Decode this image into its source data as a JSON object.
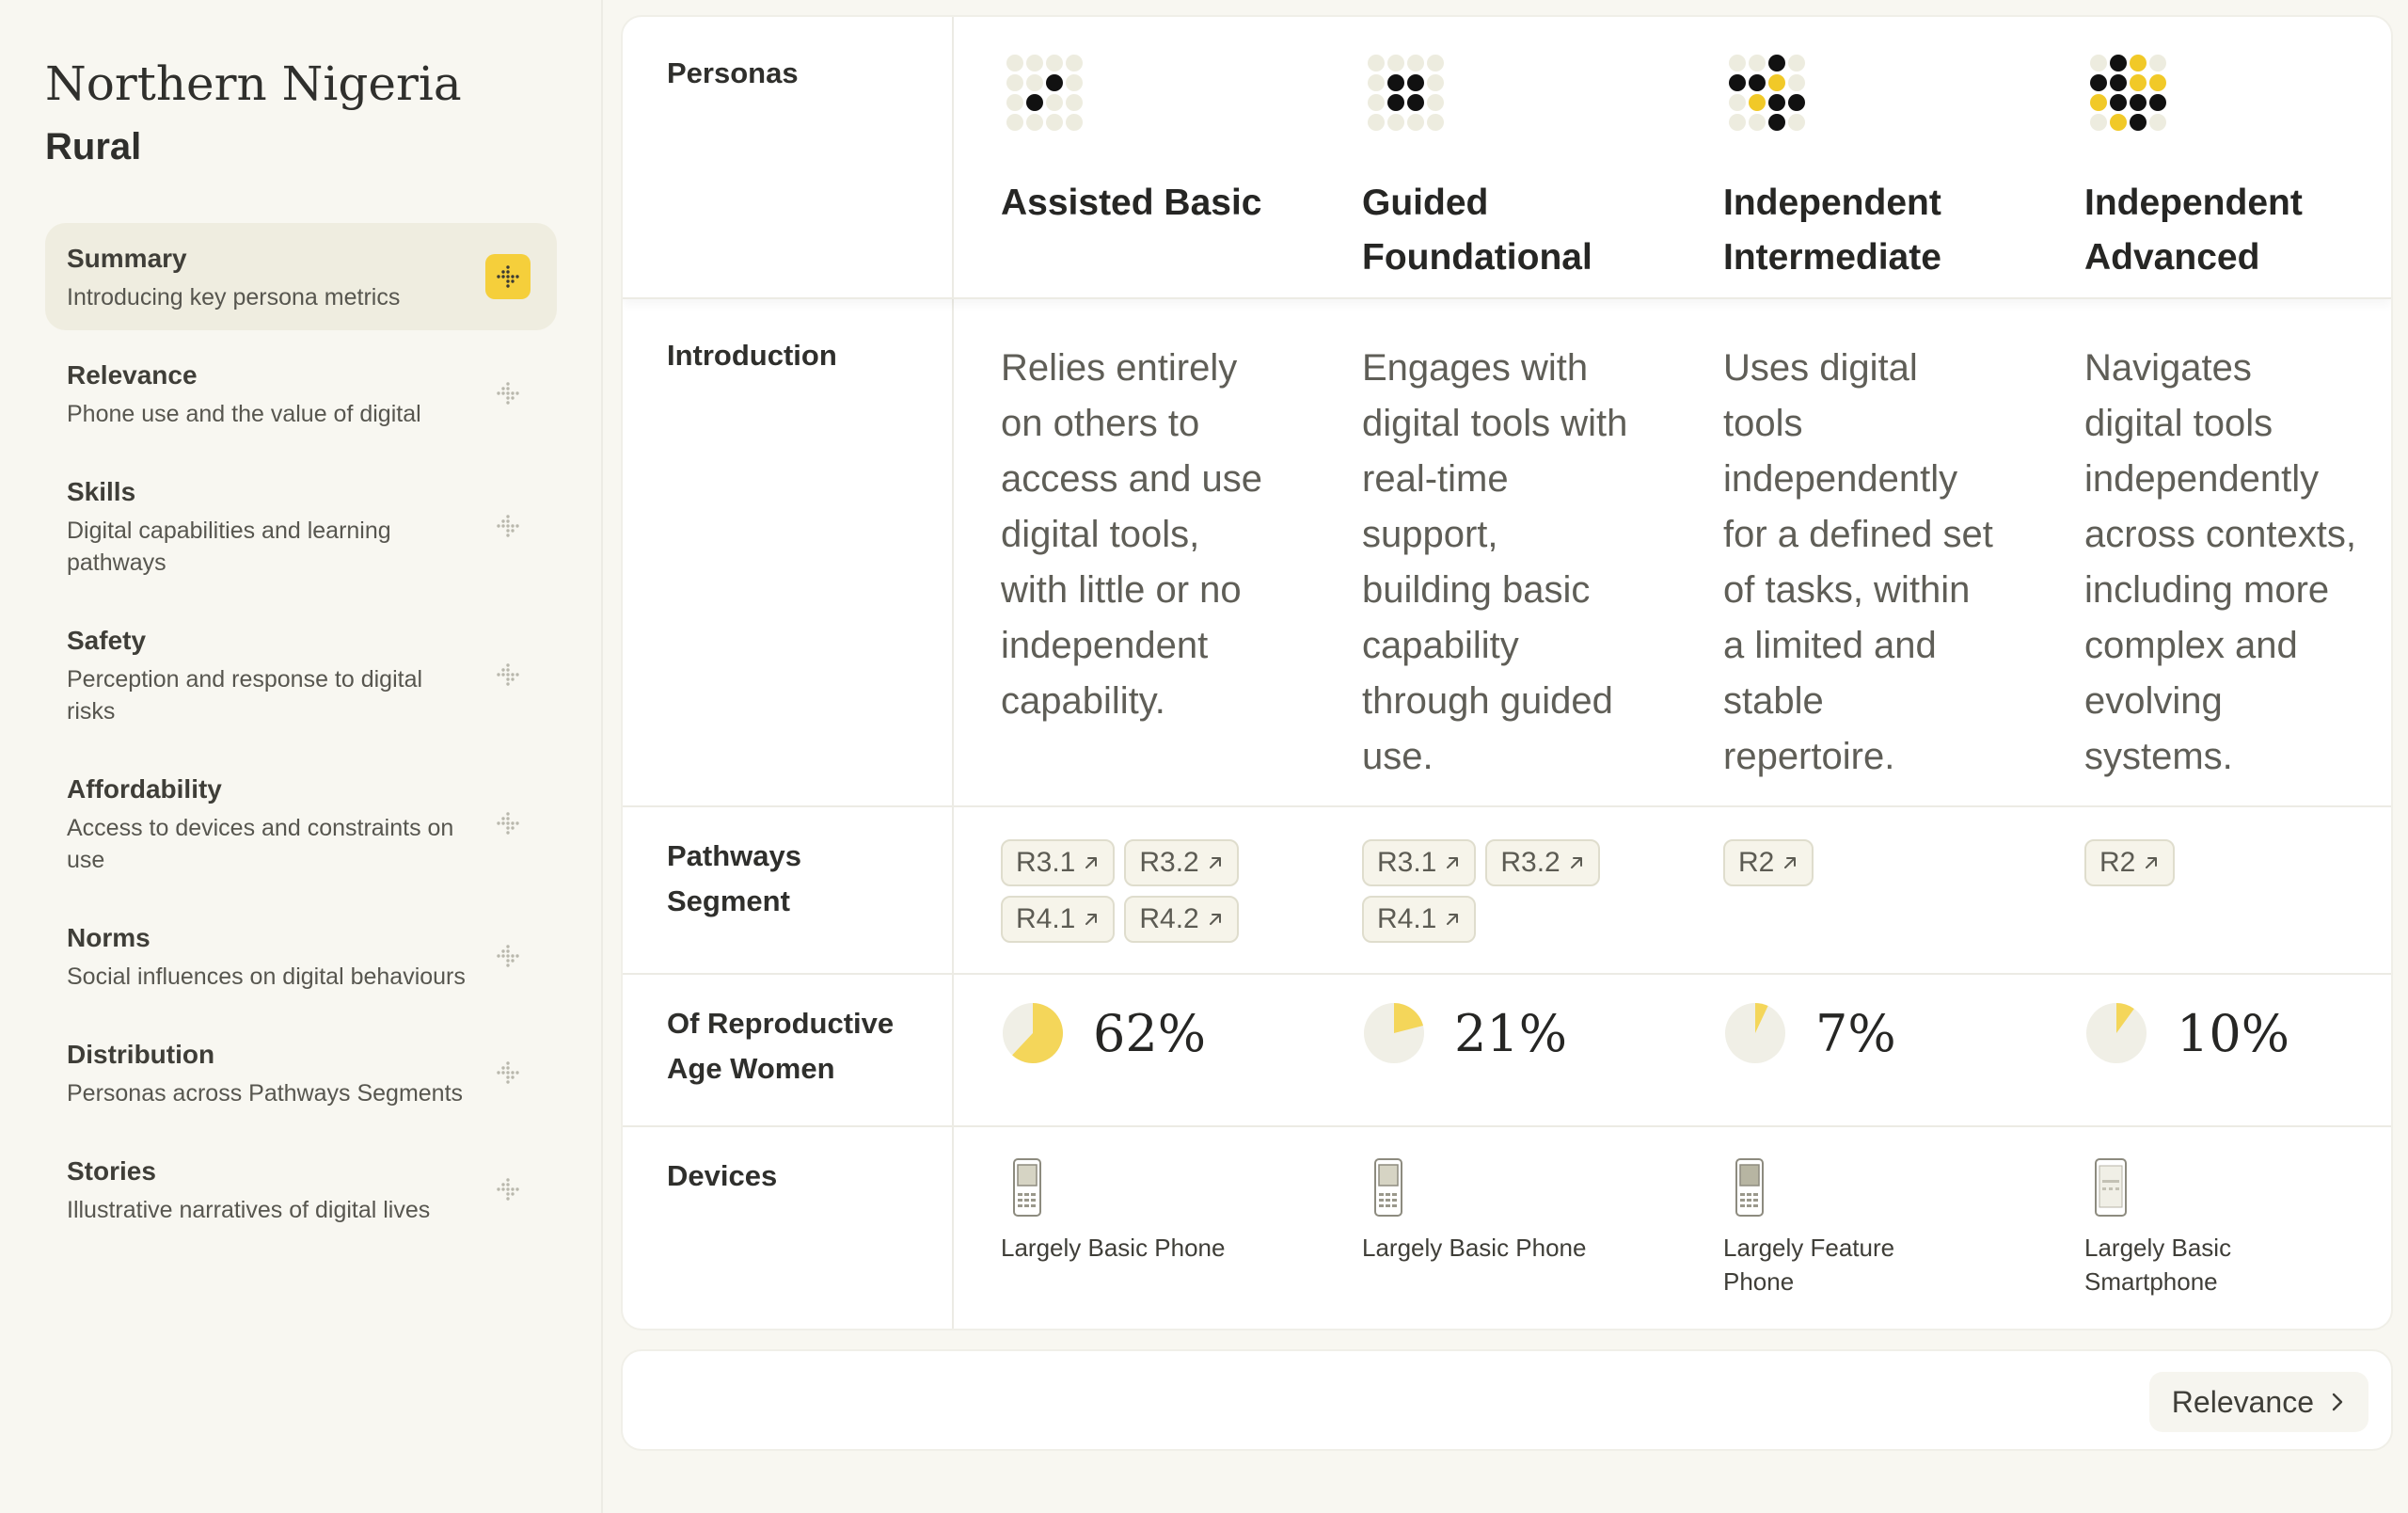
{
  "sidebar": {
    "region": "Northern Nigeria",
    "area": "Rural",
    "items": [
      {
        "title": "Summary",
        "desc": "Introducing key persona metrics"
      },
      {
        "title": "Relevance",
        "desc": "Phone use and the value of digital"
      },
      {
        "title": "Skills",
        "desc": "Digital capabilities and learning pathways"
      },
      {
        "title": "Safety",
        "desc": "Perception and response to digital risks"
      },
      {
        "title": "Affordability",
        "desc": "Access to devices and constraints on use"
      },
      {
        "title": "Norms",
        "desc": "Social influences on digital behaviours"
      },
      {
        "title": "Distribution",
        "desc": "Personas across Pathways Segments"
      },
      {
        "title": "Stories",
        "desc": "Illustrative narratives of digital lives"
      }
    ],
    "active_index": 0
  },
  "table": {
    "row_labels": {
      "personas": "Personas",
      "introduction": "Introduction",
      "pathways": "Pathways Segment",
      "women": "Of Reproductive Age Women",
      "devices": "Devices"
    },
    "personas": [
      {
        "name": "Assisted Basic",
        "intro": "Relies entirely on others to access and use digital tools, with little or no independent capability.",
        "segments": [
          "R3.1",
          "R3.2",
          "R4.1",
          "R4.2"
        ],
        "percent_label": "62%",
        "percent_value": 62,
        "device": "Largely Basic Phone",
        "device_icon": "basic-phone-icon",
        "dots": "....|..k.|.k..|...."
      },
      {
        "name": "Guided Foundational",
        "intro": "Engages with digital tools with real-time support, building basic capability through guided use.",
        "segments": [
          "R3.1",
          "R3.2",
          "R4.1"
        ],
        "percent_label": "21%",
        "percent_value": 21,
        "device": "Largely Basic Phone",
        "device_icon": "basic-phone-icon",
        "dots": "....|.kk.|.kk.|...."
      },
      {
        "name": "Independent Intermediate",
        "intro": "Uses digital tools independently for a defined set of tasks, within a limited and stable repertoire.",
        "segments": [
          "R2"
        ],
        "percent_label": "7%",
        "percent_value": 7,
        "device": "Largely Feature Phone",
        "device_icon": "feature-phone-icon",
        "dots": "..k.|kky.|.ykk|..k."
      },
      {
        "name": "Independent Advanced",
        "intro": "Navigates digital tools independently across contexts, including more complex and evolving systems.",
        "segments": [
          "R2"
        ],
        "percent_label": "10%",
        "percent_value": 10,
        "device": "Largely Basic Smartphone",
        "device_icon": "smartphone-icon",
        "dots": ".ky.|kkyy|ykkk|.yk."
      }
    ]
  },
  "footer": {
    "next_label": "Relevance"
  },
  "colors": {
    "accent": "#f5cf3b",
    "pie_fill": "#f4d65a",
    "pie_bg": "#f0efe6"
  }
}
